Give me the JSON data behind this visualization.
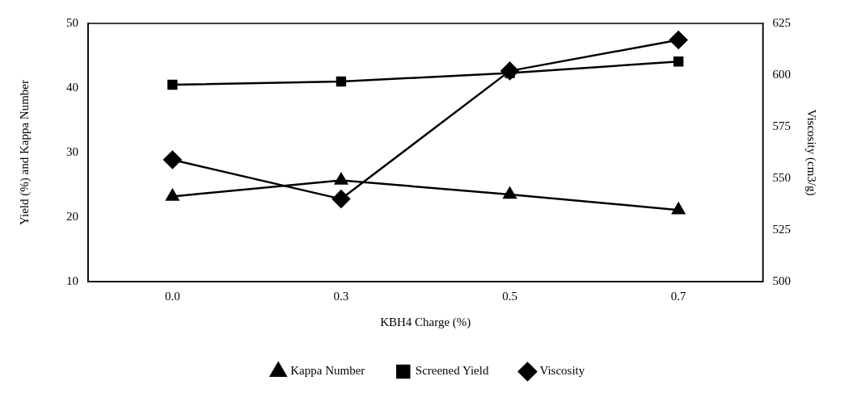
{
  "chart_data": {
    "type": "line",
    "xlabel": "KBH4 Charge (%)",
    "ylabel": "Yield (%) and Kappa Number",
    "y2label": "Viscosity (cm3/g)",
    "categories": [
      "0.0",
      "0.3",
      "0.5",
      "0.7"
    ],
    "series": [
      {
        "name": "Kappa Number",
        "color": "#000000",
        "marker": "triangle",
        "values": [
          23.2,
          25.7,
          23.5,
          21.1
        ]
      },
      {
        "name": "Screened Yield",
        "color": "#000000",
        "marker": "square",
        "values": [
          40.5,
          41.0,
          42.3,
          44.1
        ]
      },
      {
        "name": "Viscosity",
        "color": "#000000",
        "marker": "diamond",
        "axis": "y2",
        "values": [
          559,
          540,
          602,
          617
        ]
      }
    ],
    "ylim": [
      10,
      50
    ],
    "yticks": [
      10,
      20,
      30,
      40,
      50
    ],
    "y2lim": [
      500,
      625
    ],
    "y2ticks": [
      500,
      525,
      550,
      575,
      600,
      625
    ],
    "grid": false,
    "legend": "bottom",
    "line_style": "solid"
  }
}
